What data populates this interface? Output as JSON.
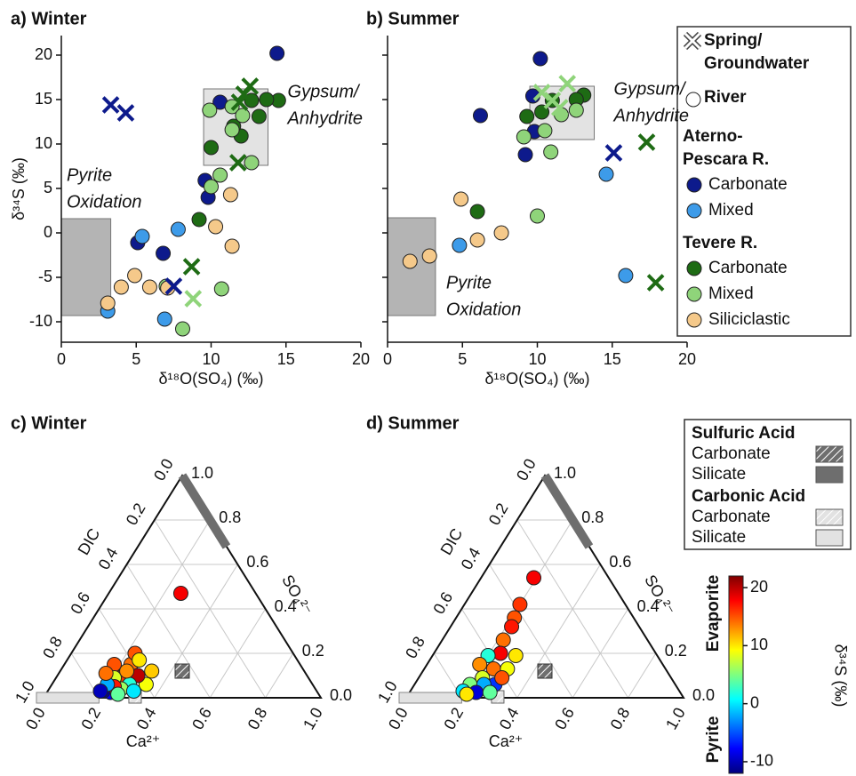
{
  "chart_data": [
    {
      "type": "scatter",
      "title": "a) Winter",
      "xlabel": "δ¹⁸O(SO₄) (‰)",
      "ylabel": "δ³⁴S (‰)",
      "xlim": [
        0,
        20
      ],
      "ylim": [
        -12.3,
        22.2
      ],
      "xticks": [
        0,
        5,
        10,
        15,
        20
      ],
      "yticks": [
        -10,
        -5,
        0,
        5,
        10,
        15,
        20
      ],
      "ytick_labels": true,
      "regions": [
        {
          "label": [
            "Gypsum/",
            "Anhydrite"
          ],
          "xlim": [
            9.5,
            13.8
          ],
          "ylim": [
            7.6,
            16.2
          ],
          "color": "#e3e3e3"
        },
        {
          "label": [
            "Pyrite",
            "Oxidation"
          ],
          "xlim": [
            0,
            3.3
          ],
          "ylim": [
            -9.3,
            1.6
          ],
          "color": "#b4b4b4"
        }
      ],
      "series": [
        {
          "marker": "circle",
          "color": "#0d1a8c",
          "x": [
            14.4,
            10.6,
            9.6,
            9.8,
            6.8,
            5.1
          ],
          "y": [
            20.2,
            14.7,
            5.9,
            4.0,
            -2.3,
            -1.1
          ]
        },
        {
          "marker": "circle",
          "color": "#3d9be9",
          "x": [
            5.4,
            7.8,
            3.1,
            6.9
          ],
          "y": [
            -0.4,
            0.4,
            -8.8,
            -9.7
          ]
        },
        {
          "marker": "circle",
          "color": "#1e6b14",
          "x": [
            10.0,
            9.2,
            12.0,
            12.7,
            13.2,
            14.5,
            13.7,
            11.5
          ],
          "y": [
            9.6,
            1.5,
            10.9,
            14.9,
            13.1,
            14.9,
            15.0,
            12.0
          ]
        },
        {
          "marker": "circle",
          "color": "#8fd47a",
          "x": [
            9.9,
            10.0,
            10.6,
            11.4,
            12.1,
            12.7,
            11.4,
            7.0,
            10.7,
            8.1
          ],
          "y": [
            13.8,
            5.2,
            6.5,
            14.2,
            13.2,
            7.9,
            11.6,
            -6.0,
            -6.3,
            -10.8
          ]
        },
        {
          "marker": "circle",
          "color": "#f5c98a",
          "x": [
            3.1,
            4.0,
            4.9,
            5.9,
            7.1,
            10.3,
            11.3,
            11.4
          ],
          "y": [
            -7.9,
            -6.1,
            -4.8,
            -6.1,
            -6.2,
            0.7,
            4.3,
            -1.5
          ]
        },
        {
          "marker": "x",
          "color": "#0d1a8c",
          "x": [
            3.3,
            4.3,
            7.5
          ],
          "y": [
            14.4,
            13.5,
            -6.0
          ]
        },
        {
          "marker": "x",
          "color": "#1e6b14",
          "x": [
            12.6,
            12.2,
            11.9,
            11.8,
            8.7
          ],
          "y": [
            16.5,
            15.6,
            14.7,
            7.9,
            -3.8
          ]
        },
        {
          "marker": "x",
          "color": "#8fd47a",
          "x": [
            8.8
          ],
          "y": [
            -7.4
          ]
        }
      ]
    },
    {
      "type": "scatter",
      "title": "b) Summer",
      "xlabel": "δ¹⁸O(SO₄) (‰)",
      "xlim": [
        0,
        20
      ],
      "ylim": [
        -12.3,
        22.2
      ],
      "xticks": [
        0,
        5,
        10,
        15,
        20
      ],
      "yticks": [
        -10,
        -5,
        0,
        5,
        10,
        15,
        20
      ],
      "ytick_labels": false,
      "regions": [
        {
          "label": [
            "Gypsum/",
            "Anhydrite"
          ],
          "xlim": [
            9.5,
            13.8
          ],
          "ylim": [
            10.5,
            16.5
          ],
          "color": "#e3e3e3"
        },
        {
          "label": [
            "Pyrite",
            "Oxidation"
          ],
          "xlim": [
            0,
            3.2
          ],
          "ylim": [
            -9.3,
            1.7
          ],
          "color": "#b4b4b4"
        }
      ],
      "series": [
        {
          "marker": "circle",
          "color": "#0d1a8c",
          "x": [
            10.2,
            9.7,
            6.2,
            9.8,
            9.2
          ],
          "y": [
            19.6,
            15.4,
            13.2,
            11.4,
            8.8
          ]
        },
        {
          "marker": "circle",
          "color": "#3d9be9",
          "x": [
            14.6,
            4.8,
            15.9
          ],
          "y": [
            6.6,
            -1.4,
            -4.8
          ]
        },
        {
          "marker": "circle",
          "color": "#1e6b14",
          "x": [
            9.3,
            10.3,
            11.0,
            13.1,
            6.0,
            12.6
          ],
          "y": [
            13.1,
            13.6,
            14.9,
            15.5,
            2.4,
            15.0
          ]
        },
        {
          "marker": "circle",
          "color": "#8fd47a",
          "x": [
            9.1,
            10.9,
            11.6,
            10.5,
            10.0,
            12.6
          ],
          "y": [
            10.8,
            9.1,
            13.3,
            11.5,
            1.9,
            13.8
          ]
        },
        {
          "marker": "circle",
          "color": "#f5c98a",
          "x": [
            1.5,
            2.8,
            4.9,
            6.0,
            7.6
          ],
          "y": [
            -3.2,
            -2.6,
            3.8,
            -0.8,
            0.0
          ]
        },
        {
          "marker": "x",
          "color": "#0d1a8c",
          "x": [
            15.1
          ],
          "y": [
            9.0
          ]
        },
        {
          "marker": "x",
          "color": "#1e6b14",
          "x": [
            17.3,
            17.9
          ],
          "y": [
            10.2,
            -5.6
          ]
        },
        {
          "marker": "x",
          "color": "#8fd47a",
          "x": [
            10.3,
            12.0,
            11.0,
            11.5
          ],
          "y": [
            15.8,
            16.8,
            14.9,
            14.1
          ]
        }
      ]
    },
    {
      "type": "ternary",
      "title": "c) Winter",
      "left_label": "DIC",
      "right_label": "SO₄²⁻",
      "bottom_label": "Ca²⁺",
      "grid": true,
      "ticks": [
        {
          "value": 0,
          "label": "0.0"
        },
        {
          "value": 0.2,
          "label": "0.2"
        },
        {
          "value": 0.4,
          "label": "0.4"
        },
        {
          "value": 0.6,
          "label": "0.6"
        },
        {
          "value": 0.8,
          "label": "0.8"
        },
        {
          "value": 1,
          "label": "1.0"
        }
      ],
      "endmembers": {
        "sulfuric_carbonate": {
          "ca": 0.44,
          "so4": 0.12
        },
        "sulfuric_silicate": {
          "so4": [
            0.68,
            1.0
          ]
        },
        "carbonic_carbonate": {
          "ca": 0.33
        },
        "carbonic_silicate": {
          "ca": [
            0,
            0.2
          ]
        }
      },
      "points": {
        "ca": [
          0.26,
          0.24,
          0.23,
          0.26,
          0.33,
          0.34,
          0.29,
          0.24,
          0.18,
          0.21,
          0.28,
          0.26,
          0.23,
          0.2,
          0.23,
          0.2,
          0.31,
          0.19,
          0.26,
          0.24,
          0.17
        ],
        "so4": [
          0.47,
          0.15,
          0.2,
          0.17,
          0.12,
          0.06,
          0.1,
          0.1,
          0.15,
          0.09,
          0.06,
          0.04,
          0.024,
          0.03,
          0.05,
          0.06,
          0.03,
          0.03,
          0.016,
          0.12,
          0.11
        ],
        "d34s": [
          18,
          14,
          15,
          10,
          11,
          9,
          20,
          16,
          15,
          8,
          2,
          6,
          -8,
          -11,
          17,
          -2,
          0,
          -10,
          4,
          13,
          14
        ]
      }
    },
    {
      "type": "ternary",
      "title": "d) Summer",
      "left_label": "DIC",
      "right_label": "SO₄²⁻",
      "bottom_label": "Ca²⁺",
      "grid": true,
      "ticks": [
        {
          "value": 0,
          "label": "0.0"
        },
        {
          "value": 0.2,
          "label": "0.2"
        },
        {
          "value": 0.4,
          "label": "0.4"
        },
        {
          "value": 0.6,
          "label": "0.6"
        },
        {
          "value": 0.8,
          "label": "0.8"
        },
        {
          "value": 1,
          "label": "1.0"
        }
      ],
      "endmembers": {
        "sulfuric_carbonate": {
          "ca": 0.44,
          "so4": 0.12
        },
        "sulfuric_silicate": {
          "so4": [
            0.68,
            1.0
          ]
        },
        "carbonic_carbonate": {
          "ca": 0.33
        },
        "carbonic_silicate": {
          "ca": [
            0,
            0.2
          ]
        }
      },
      "points": {
        "ca": [
          0.19,
          0.2,
          0.21,
          0.22,
          0.22,
          0.24,
          0.3,
          0.2,
          0.25,
          0.19,
          0.3,
          0.23,
          0.2,
          0.29,
          0.25,
          0.19,
          0.24,
          0.29,
          0.21,
          0.3
        ],
        "so4": [
          0.54,
          0.42,
          0.36,
          0.32,
          0.26,
          0.2,
          0.19,
          0.19,
          0.13,
          0.15,
          0.13,
          0.09,
          0.06,
          0.06,
          0.06,
          0.03,
          0.024,
          0.024,
          0.016,
          0.09
        ],
        "d34s": [
          18,
          16,
          15,
          17,
          14,
          18,
          10,
          2,
          14,
          13,
          9,
          8,
          5,
          -6,
          -2,
          0,
          -9,
          4,
          10,
          15
        ]
      }
    }
  ],
  "legend": {
    "marker_items": [
      {
        "marker": "x",
        "label": [
          "Spring/",
          "Groundwater"
        ]
      },
      {
        "marker": "circle",
        "label": [
          "River"
        ]
      }
    ],
    "groups": [
      {
        "title": [
          "Aterno-",
          "Pescara R."
        ],
        "items": [
          {
            "name": "Carbonate",
            "color": "#0d1a8c"
          },
          {
            "name": "Mixed",
            "color": "#3d9be9"
          }
        ]
      },
      {
        "title": [
          "Tevere R."
        ],
        "items": [
          {
            "name": "Carbonate",
            "color": "#1e6b14"
          },
          {
            "name": "Mixed",
            "color": "#8fd47a"
          },
          {
            "name": "Siliciclastic",
            "color": "#f5c98a"
          }
        ]
      }
    ]
  },
  "endmember_legend": {
    "groups": [
      {
        "title": "Sulfuric Acid",
        "items": [
          {
            "name": "Carbonate",
            "color": "#6e6e6e",
            "hatch": true
          },
          {
            "name": "Silicate",
            "color": "#6e6e6e",
            "hatch": false
          }
        ]
      },
      {
        "title": "Carbonic Acid",
        "items": [
          {
            "name": "Carbonate",
            "color": "#e2e2e2",
            "hatch": true
          },
          {
            "name": "Silicate",
            "color": "#e2e2e2",
            "hatch": false
          }
        ]
      }
    ]
  },
  "colorbar": {
    "label": "δ³⁴S (‰)",
    "top_label": "Evaporite",
    "bottom_label": "Pyrite",
    "lim": [
      -12,
      22
    ],
    "ticks": [
      -10,
      0,
      10,
      20
    ],
    "colors": [
      "#00007f",
      "#0000ff",
      "#007fff",
      "#00ffff",
      "#7fff7f",
      "#ffff00",
      "#ff7f00",
      "#ff0000",
      "#7f0000"
    ]
  }
}
